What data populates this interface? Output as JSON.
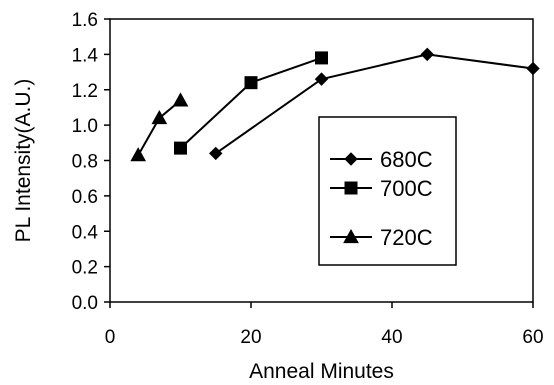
{
  "chart_data": {
    "type": "line",
    "title": "",
    "xlabel": "Anneal Minutes",
    "ylabel": "PL Intensity(A.U.)",
    "xlim": [
      0,
      60
    ],
    "ylim": [
      0.0,
      1.6
    ],
    "xticks": [
      0,
      20,
      40,
      60
    ],
    "xtick_labels": [
      "0",
      "20",
      "40",
      "60"
    ],
    "yticks": [
      0.0,
      0.2,
      0.4,
      0.6,
      0.8,
      1.0,
      1.2,
      1.4,
      1.6
    ],
    "ytick_labels": [
      "0.0",
      "0.2",
      "0.4",
      "0.6",
      "0.8",
      "1.0",
      "1.2",
      "1.4",
      "1.6"
    ],
    "grid": false,
    "legend_position": "right",
    "series": [
      {
        "name": "680C",
        "marker": "diamond",
        "color": "#000000",
        "x": [
          15,
          30,
          45,
          60
        ],
        "y": [
          0.84,
          1.26,
          1.4,
          1.32
        ]
      },
      {
        "name": "700C",
        "marker": "square",
        "color": "#000000",
        "x": [
          10,
          20,
          30
        ],
        "y": [
          0.87,
          1.24,
          1.38
        ]
      },
      {
        "name": "720C",
        "marker": "triangle",
        "color": "#000000",
        "x": [
          4,
          7,
          10
        ],
        "y": [
          0.83,
          1.04,
          1.14
        ]
      }
    ]
  }
}
